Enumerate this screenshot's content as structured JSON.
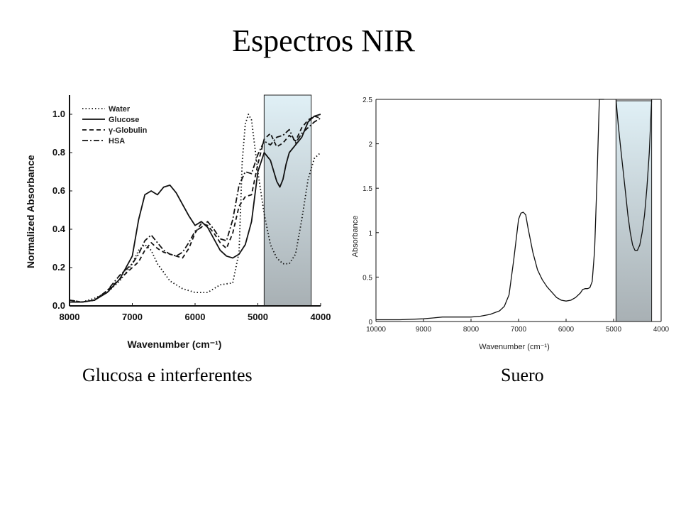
{
  "slide": {
    "title": "Espectros NIR",
    "caption_left": "Glucosa e interferentes",
    "caption_right": "Suero"
  },
  "colors": {
    "highlight_top": "#e0f0f6",
    "highlight_bottom": "#a8b0b4",
    "line": "#111111"
  },
  "chart_data": [
    {
      "type": "line",
      "title": "",
      "xlabel": "Wavenumber (cm⁻¹)",
      "ylabel": "Normalized Absorbance",
      "xlim": [
        8000,
        4000
      ],
      "ylim": [
        0,
        1.1
      ],
      "xticks": [
        8000,
        7000,
        6000,
        5000,
        4000
      ],
      "yticks": [
        "0.0",
        "0.2",
        "0.4",
        "0.6",
        "0.8",
        "1.0"
      ],
      "legend_position": "top-left",
      "highlight_range": [
        4900,
        4150
      ],
      "series": [
        {
          "name": "Water",
          "style": "dotted",
          "x": [
            8000,
            7800,
            7600,
            7400,
            7200,
            7000,
            6900,
            6800,
            6700,
            6600,
            6400,
            6200,
            6000,
            5800,
            5600,
            5400,
            5300,
            5250,
            5200,
            5150,
            5100,
            5000,
            4900,
            4800,
            4700,
            4600,
            4500,
            4400,
            4300,
            4200,
            4100,
            4000
          ],
          "y": [
            0.03,
            0.02,
            0.04,
            0.07,
            0.13,
            0.22,
            0.29,
            0.32,
            0.29,
            0.22,
            0.13,
            0.09,
            0.07,
            0.07,
            0.11,
            0.12,
            0.28,
            0.75,
            0.95,
            1.0,
            0.97,
            0.7,
            0.48,
            0.32,
            0.25,
            0.22,
            0.22,
            0.27,
            0.45,
            0.66,
            0.77,
            0.8
          ]
        },
        {
          "name": "Glucose",
          "style": "solid",
          "x": [
            8000,
            7800,
            7600,
            7400,
            7200,
            7000,
            6900,
            6800,
            6700,
            6600,
            6500,
            6400,
            6300,
            6200,
            6100,
            6000,
            5900,
            5800,
            5700,
            5600,
            5500,
            5400,
            5300,
            5200,
            5100,
            5000,
            4900,
            4800,
            4700,
            4650,
            4600,
            4550,
            4500,
            4400,
            4300,
            4200,
            4100,
            4000
          ],
          "y": [
            0.02,
            0.02,
            0.03,
            0.07,
            0.14,
            0.26,
            0.45,
            0.58,
            0.6,
            0.58,
            0.62,
            0.63,
            0.59,
            0.53,
            0.47,
            0.42,
            0.44,
            0.41,
            0.35,
            0.29,
            0.26,
            0.25,
            0.27,
            0.32,
            0.44,
            0.7,
            0.8,
            0.76,
            0.65,
            0.62,
            0.66,
            0.74,
            0.8,
            0.84,
            0.88,
            0.96,
            0.99,
            1.0
          ]
        },
        {
          "name": "γ-Globulin",
          "style": "dashed",
          "x": [
            8000,
            7800,
            7600,
            7400,
            7200,
            7000,
            6900,
            6800,
            6700,
            6600,
            6500,
            6400,
            6300,
            6200,
            6100,
            6000,
            5900,
            5800,
            5700,
            5600,
            5500,
            5400,
            5300,
            5200,
            5100,
            5000,
            4900,
            4800,
            4700,
            4600,
            4500,
            4400,
            4300,
            4200,
            4100,
            4000
          ],
          "y": [
            0.02,
            0.02,
            0.03,
            0.08,
            0.14,
            0.2,
            0.23,
            0.29,
            0.33,
            0.3,
            0.28,
            0.27,
            0.26,
            0.25,
            0.3,
            0.38,
            0.43,
            0.42,
            0.38,
            0.33,
            0.3,
            0.38,
            0.52,
            0.57,
            0.58,
            0.74,
            0.87,
            0.9,
            0.83,
            0.85,
            0.89,
            0.86,
            0.93,
            0.97,
            0.99,
            0.98
          ]
        },
        {
          "name": "HSA",
          "style": "dash-dot",
          "x": [
            8000,
            7800,
            7600,
            7400,
            7200,
            7000,
            6900,
            6800,
            6700,
            6600,
            6500,
            6400,
            6300,
            6200,
            6100,
            6000,
            5900,
            5800,
            5700,
            5600,
            5500,
            5400,
            5300,
            5200,
            5100,
            5000,
            4900,
            4800,
            4700,
            4600,
            4500,
            4400,
            4300,
            4200,
            4100,
            4000
          ],
          "y": [
            0.03,
            0.02,
            0.03,
            0.08,
            0.16,
            0.22,
            0.27,
            0.34,
            0.37,
            0.33,
            0.29,
            0.27,
            0.26,
            0.28,
            0.33,
            0.39,
            0.41,
            0.44,
            0.4,
            0.35,
            0.34,
            0.45,
            0.63,
            0.7,
            0.69,
            0.79,
            0.86,
            0.84,
            0.88,
            0.89,
            0.92,
            0.85,
            0.9,
            0.93,
            0.96,
            0.98
          ]
        }
      ]
    },
    {
      "type": "line",
      "title": "",
      "xlabel": "Wavenumber (cm⁻¹)",
      "ylabel": "Absorbance",
      "xlim": [
        10000,
        4000
      ],
      "ylim": [
        0,
        2.5
      ],
      "xticks": [
        10000,
        9000,
        8000,
        7000,
        6000,
        5000,
        4000
      ],
      "yticks": [
        "0",
        "0.5",
        "1",
        "1.5",
        "2",
        "2.5"
      ],
      "highlight_range": [
        4950,
        4200
      ],
      "series": [
        {
          "name": "",
          "style": "solid",
          "x": [
            10000,
            9500,
            9000,
            8800,
            8600,
            8400,
            8200,
            8000,
            7800,
            7600,
            7400,
            7300,
            7200,
            7100,
            7000,
            6950,
            6900,
            6850,
            6800,
            6700,
            6600,
            6500,
            6400,
            6300,
            6200,
            6100,
            6000,
            5900,
            5800,
            5700,
            5650,
            5600,
            5550,
            5500,
            5450,
            5400,
            5350,
            5300,
            5250,
            5200
          ],
          "y": [
            0.02,
            0.02,
            0.03,
            0.04,
            0.05,
            0.05,
            0.05,
            0.05,
            0.06,
            0.08,
            0.12,
            0.17,
            0.3,
            0.7,
            1.15,
            1.22,
            1.23,
            1.2,
            1.05,
            0.78,
            0.58,
            0.47,
            0.39,
            0.33,
            0.27,
            0.24,
            0.23,
            0.24,
            0.27,
            0.32,
            0.36,
            0.37,
            0.37,
            0.38,
            0.45,
            0.8,
            1.6,
            2.5,
            2.5,
            2.5
          ]
        },
        {
          "name": "",
          "style": "solid",
          "x": [
            4950,
            4900,
            4850,
            4800,
            4750,
            4700,
            4650,
            4600,
            4550,
            4500,
            4450,
            4400,
            4350,
            4300,
            4250,
            4200
          ],
          "y": [
            2.5,
            2.2,
            1.95,
            1.7,
            1.45,
            1.2,
            1.0,
            0.86,
            0.8,
            0.8,
            0.86,
            1.0,
            1.2,
            1.5,
            1.9,
            2.5
          ]
        }
      ]
    }
  ]
}
